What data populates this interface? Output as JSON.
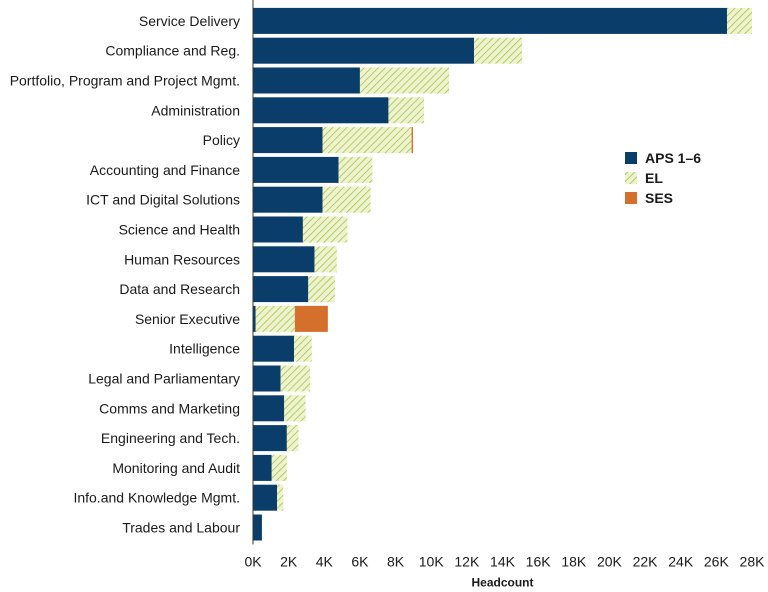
{
  "chart_data": {
    "type": "bar",
    "orientation": "horizontal",
    "stacked": true,
    "title": "",
    "xlabel": "Headcount",
    "ylabel": "",
    "xlim": [
      0,
      28000
    ],
    "x_ticks": [
      0,
      2000,
      4000,
      6000,
      8000,
      10000,
      12000,
      14000,
      16000,
      18000,
      20000,
      22000,
      24000,
      26000,
      28000
    ],
    "x_tick_labels": [
      "0K",
      "2K",
      "4K",
      "6K",
      "8K",
      "10K",
      "12K",
      "14K",
      "16K",
      "18K",
      "20K",
      "22K",
      "24K",
      "26K",
      "28K"
    ],
    "grid": false,
    "legend_position": "right",
    "categories": [
      "Service Delivery",
      "Compliance and Reg.",
      "Portfolio, Program and Project Mgmt.",
      "Administration",
      "Policy",
      "Accounting and Finance",
      "ICT and Digital Solutions",
      "Science and Health",
      "Human Resources",
      "Data and Research",
      "Senior Executive",
      "Intelligence",
      "Legal and Parliamentary",
      "Comms and Marketing",
      "Engineering and Tech.",
      "Monitoring and Audit",
      "Info.and Knowledge Mgmt.",
      "Trades and Labour"
    ],
    "series": [
      {
        "name": "APS 1–6",
        "color": "#0b3d6b",
        "pattern": "solid",
        "values": [
          26600,
          12400,
          6000,
          7600,
          3900,
          4800,
          3900,
          2800,
          3450,
          3100,
          150,
          2300,
          1550,
          1750,
          1900,
          1050,
          1350,
          500
        ]
      },
      {
        "name": "EL",
        "color": "#c8d96f",
        "pattern": "hatched",
        "values": [
          1400,
          2700,
          5000,
          2000,
          5000,
          1900,
          2700,
          2500,
          1250,
          1500,
          2200,
          1000,
          1650,
          1200,
          650,
          850,
          350,
          0
        ]
      },
      {
        "name": "SES",
        "color": "#d4702c",
        "pattern": "solid",
        "values": [
          0,
          0,
          0,
          0,
          80,
          0,
          0,
          0,
          0,
          0,
          1850,
          0,
          0,
          0,
          0,
          0,
          0,
          0
        ]
      }
    ]
  }
}
